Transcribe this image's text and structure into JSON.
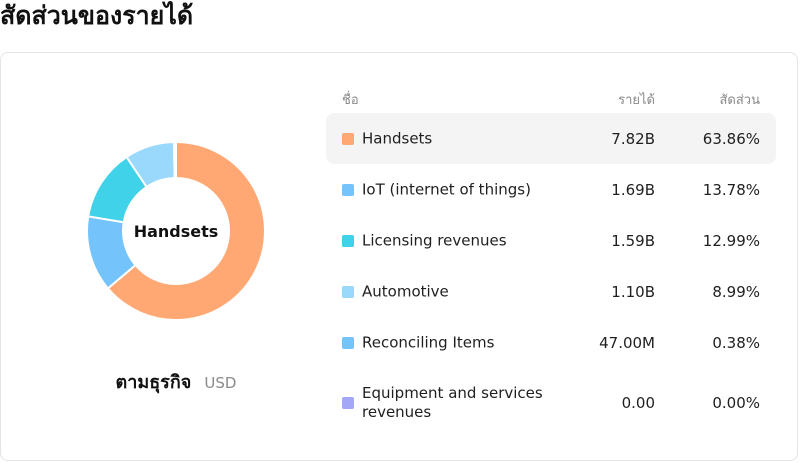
{
  "page": {
    "title": "สัดส่วนของรายได้"
  },
  "segment": {
    "label": "ตามธุรกิจ",
    "currency": "USD"
  },
  "donut": {
    "center_label": "Handsets",
    "highlight": "Handsets"
  },
  "table": {
    "headers": {
      "name": "ชื่อ",
      "revenue": "รายได้",
      "share": "สัดส่วน"
    }
  },
  "colors": {
    "Handsets": "#ffa873",
    "IoT (internet of things)": "#74c3fb",
    "Licensing revenues": "#3fd2e8",
    "Automotive": "#9ad8fc",
    "Reconciling Items": "#74c3fb",
    "Equipment and services revenues": "#a3a7f5"
  },
  "chart_data": {
    "type": "pie",
    "categories": [
      "Handsets",
      "IoT (internet of things)",
      "Licensing revenues",
      "Automotive",
      "Reconciling Items",
      "Equipment and services revenues"
    ],
    "revenue_labels": [
      "7.82B",
      "1.69B",
      "1.59B",
      "1.10B",
      "47.00M",
      "0.00"
    ],
    "share_labels": [
      "63.86%",
      "13.78%",
      "12.99%",
      "8.99%",
      "0.38%",
      "0.00%"
    ],
    "values": [
      63.86,
      13.78,
      12.99,
      8.99,
      0.38,
      0.0
    ]
  }
}
